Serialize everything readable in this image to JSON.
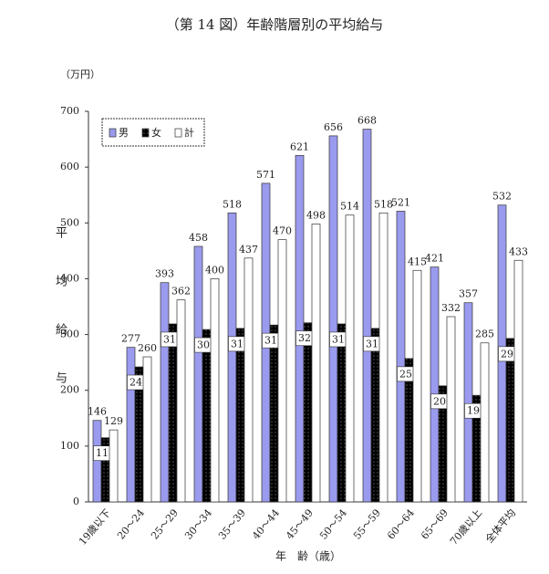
{
  "chart_data": {
    "type": "bar",
    "title": "（第 14 図）年齢階層別の平均給与",
    "unit_label": "（万円）",
    "y_label": "平均給与",
    "x_label": "年　齢（歳）",
    "categories": [
      "19歳以下",
      "20～24",
      "25～29",
      "30～34",
      "35～39",
      "40～44",
      "45～49",
      "50～54",
      "55～59",
      "60～64",
      "65～69",
      "70歳以上",
      "全体平均"
    ],
    "series": [
      {
        "name": "男",
        "color": "#9a9aee",
        "values": [
          146,
          277,
          393,
          458,
          518,
          571,
          621,
          656,
          668,
          521,
          421,
          357,
          532
        ]
      },
      {
        "name": "女",
        "color": "#000000",
        "values": [
          115,
          242,
          319,
          309,
          311,
          317,
          321,
          319,
          311,
          257,
          208,
          191,
          293
        ]
      },
      {
        "name": "計",
        "color": "#ffffff",
        "values": [
          129,
          260,
          362,
          400,
          437,
          470,
          498,
          514,
          518,
          415,
          332,
          285,
          433
        ]
      }
    ],
    "ylim": [
      0,
      700
    ],
    "yticks": [
      0,
      100,
      200,
      300,
      400,
      500,
      600,
      700
    ]
  }
}
